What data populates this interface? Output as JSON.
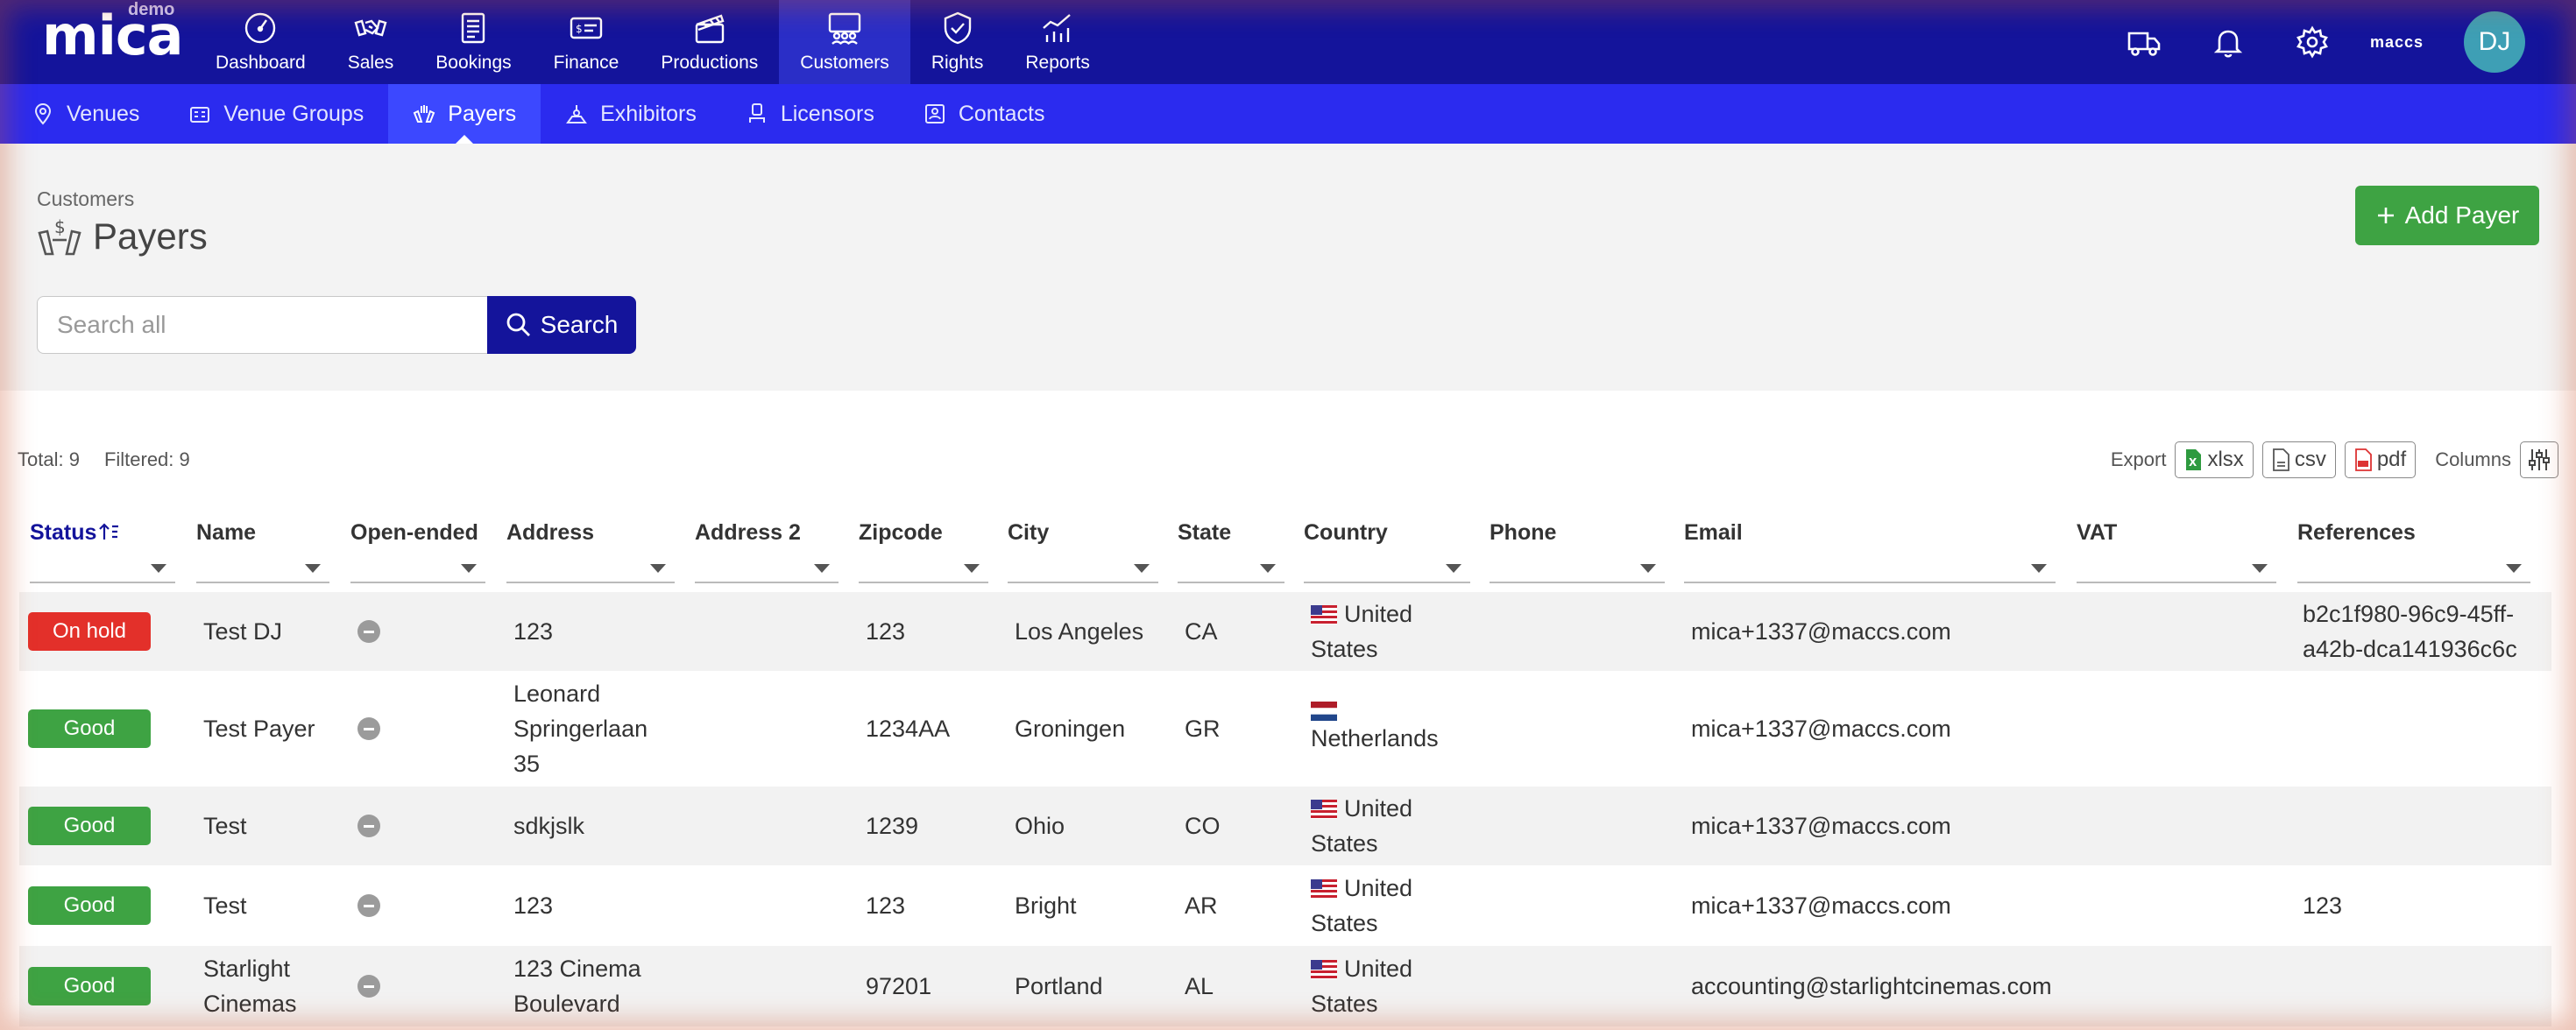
{
  "app": {
    "logo": "mica",
    "env": "demo"
  },
  "nav": [
    {
      "label": "Dashboard",
      "icon": "dashboard-icon"
    },
    {
      "label": "Sales",
      "icon": "handshake-icon"
    },
    {
      "label": "Bookings",
      "icon": "bookings-icon"
    },
    {
      "label": "Finance",
      "icon": "finance-icon"
    },
    {
      "label": "Productions",
      "icon": "clapperboard-icon"
    },
    {
      "label": "Customers",
      "icon": "customers-icon",
      "active": true
    },
    {
      "label": "Rights",
      "icon": "shield-icon"
    },
    {
      "label": "Reports",
      "icon": "reports-icon"
    }
  ],
  "topright": {
    "username": "maccs",
    "avatar": "DJ"
  },
  "subnav": [
    {
      "label": "Venues",
      "icon": "pin-icon"
    },
    {
      "label": "Venue Groups",
      "icon": "building-icon"
    },
    {
      "label": "Payers",
      "icon": "payer-icon",
      "active": true
    },
    {
      "label": "Exhibitors",
      "icon": "exhibitor-icon"
    },
    {
      "label": "Licensors",
      "icon": "licensor-icon"
    },
    {
      "label": "Contacts",
      "icon": "contact-icon"
    }
  ],
  "page": {
    "breadcrumb": "Customers",
    "title": "Payers",
    "add_button": "Add Payer",
    "search": {
      "placeholder": "Search all",
      "button": "Search"
    }
  },
  "stats": {
    "total": "Total: 9",
    "filtered": "Filtered: 9"
  },
  "export": {
    "label": "Export",
    "xlsx": "xlsx",
    "csv": "csv",
    "pdf": "pdf",
    "columns": "Columns"
  },
  "table": {
    "columns": [
      "Status",
      "Name",
      "Open-ended",
      "Address",
      "Address 2",
      "Zipcode",
      "City",
      "State",
      "Country",
      "Phone",
      "Email",
      "VAT",
      "References"
    ],
    "rows": [
      {
        "status": "On hold",
        "status_color": "#e3302a",
        "name": "Test DJ",
        "address": "123",
        "address2": "",
        "zipcode": "123",
        "city": "Los Angeles",
        "state": "CA",
        "country": "United States",
        "flag": "us",
        "phone": "",
        "email": "mica+1337@maccs.com",
        "vat": "",
        "references": "b2c1f980-96c9-45ff-a42b-dca141936c6c"
      },
      {
        "status": "Good",
        "status_color": "#3ea343",
        "name": "Test Payer",
        "address": "Leonard Springerlaan 35",
        "address2": "",
        "zipcode": "1234AA",
        "city": "Groningen",
        "state": "GR",
        "country": "Netherlands",
        "flag": "nl",
        "phone": "",
        "email": "mica+1337@maccs.com",
        "vat": "",
        "references": ""
      },
      {
        "status": "Good",
        "status_color": "#3ea343",
        "name": "Test",
        "address": "sdkjslk",
        "address2": "",
        "zipcode": "1239",
        "city": "Ohio",
        "state": "CO",
        "country": "United States",
        "flag": "us",
        "phone": "",
        "email": "mica+1337@maccs.com",
        "vat": "",
        "references": ""
      },
      {
        "status": "Good",
        "status_color": "#3ea343",
        "name": "Test",
        "address": "123",
        "address2": "",
        "zipcode": "123",
        "city": "Bright",
        "state": "AR",
        "country": "United States",
        "flag": "us",
        "phone": "",
        "email": "mica+1337@maccs.com",
        "vat": "",
        "references": "123"
      },
      {
        "status": "Good",
        "status_color": "#3ea343",
        "name": "Starlight Cinemas",
        "address": "123 Cinema Boulevard",
        "address2": "",
        "zipcode": "97201",
        "city": "Portland",
        "state": "AL",
        "country": "United States",
        "flag": "us",
        "phone": "",
        "email": "accounting@starlightcinemas.com",
        "vat": "",
        "references": ""
      }
    ]
  }
}
